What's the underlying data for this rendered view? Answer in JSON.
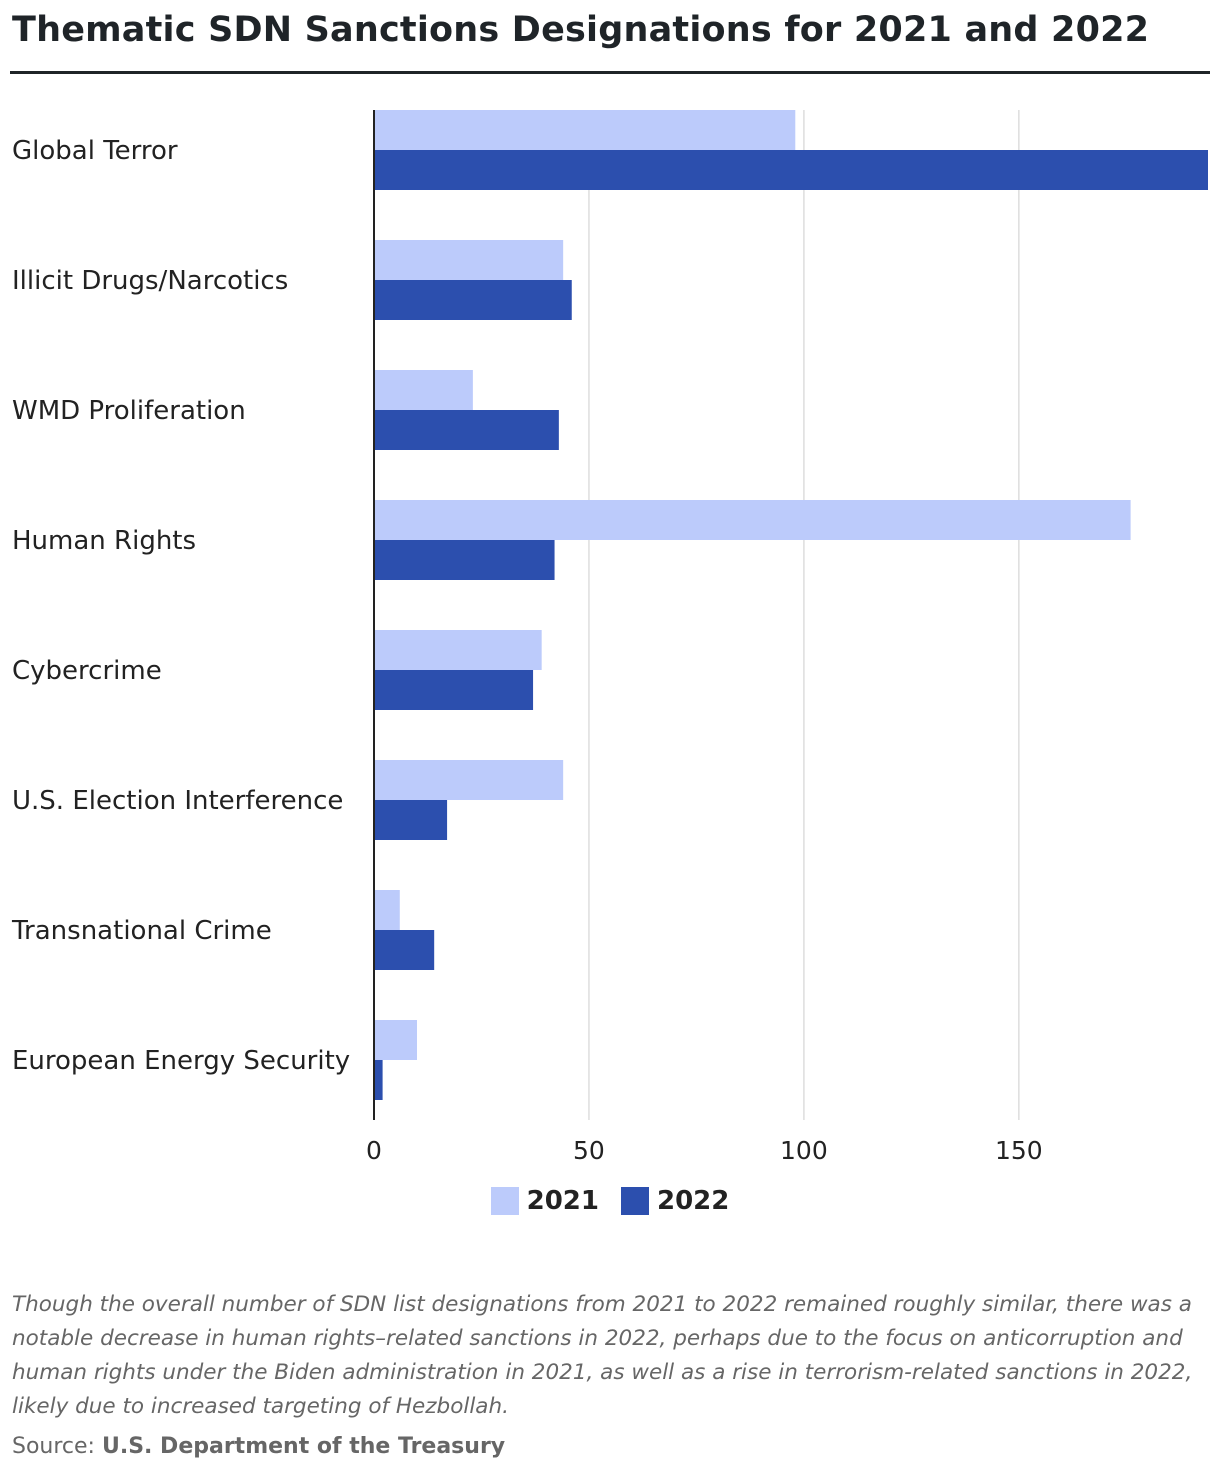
{
  "title": "Thematic SDN Sanctions Designations for 2021 and 2022",
  "caption": "Though the overall number of SDN list designations from 2021 to 2022 remained roughly similar, there was a notable decrease in human rights–related sanctions in 2022, perhaps due to the focus on anticorruption and human rights under the Biden administration in 2021, as well as a rise in terrorism-related sanctions in 2022, likely due to increased targeting of Hezbollah.",
  "source": {
    "prefix": "Source: ",
    "name": "U.S. Department of the Treasury"
  },
  "colors": {
    "series_2021": "#bccbfb",
    "series_2022": "#2c4fae",
    "grid": "#dddddd",
    "axis": "#222222"
  },
  "chart_data": {
    "type": "bar",
    "orientation": "horizontal",
    "categories": [
      "Global Terror",
      "Illicit Drugs/Narcotics",
      "WMD Proliferation",
      "Human Rights",
      "Cybercrime",
      "U.S. Election Interference",
      "Transnational Crime",
      "European Energy Security"
    ],
    "series": [
      {
        "name": "2021",
        "values": [
          98,
          44,
          23,
          176,
          39,
          44,
          6,
          10
        ]
      },
      {
        "name": "2022",
        "values": [
          194,
          46,
          43,
          42,
          37,
          17,
          14,
          2
        ]
      }
    ],
    "xticks": [
      0,
      50,
      100,
      150
    ],
    "xlim": [
      0,
      194
    ],
    "grid": true,
    "legend_position": "bottom"
  }
}
